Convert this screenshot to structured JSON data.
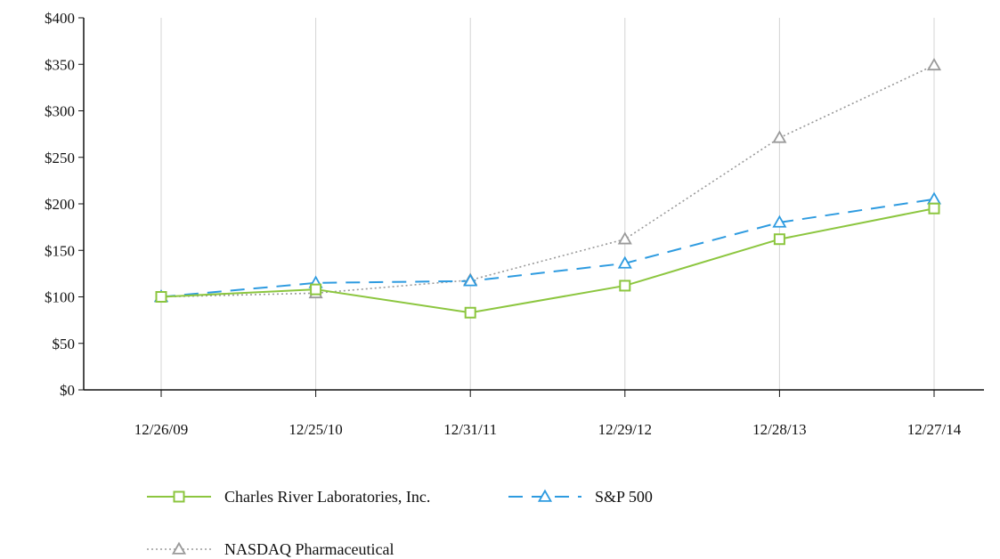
{
  "chart_data": {
    "type": "line",
    "title": "",
    "xlabel": "",
    "ylabel": "",
    "categories": [
      "12/26/09",
      "12/25/10",
      "12/31/11",
      "12/29/12",
      "12/28/13",
      "12/27/14"
    ],
    "ylim": [
      0,
      400
    ],
    "y_ticks": [
      "$0",
      "$50",
      "$100",
      "$150",
      "$200",
      "$250",
      "$300",
      "$350",
      "$400"
    ],
    "y_tick_values": [
      0,
      50,
      100,
      150,
      200,
      250,
      300,
      350,
      400
    ],
    "grid": "vertical",
    "legend_position": "bottom",
    "series": [
      {
        "name": "Charles River Laboratories, Inc.",
        "values": [
          100,
          108,
          83,
          112,
          162,
          195
        ],
        "color": "#8cc63f",
        "marker": "square",
        "line_style": "solid"
      },
      {
        "name": "S&P 500",
        "values": [
          100,
          115,
          117,
          136,
          180,
          205
        ],
        "color": "#2e9be0",
        "marker": "triangle",
        "line_style": "dashed"
      },
      {
        "name": "NASDAQ Pharmaceutical",
        "values": [
          100,
          104,
          118,
          162,
          271,
          349
        ],
        "color": "#9a9a9a",
        "marker": "triangle",
        "line_style": "dotted"
      }
    ]
  }
}
